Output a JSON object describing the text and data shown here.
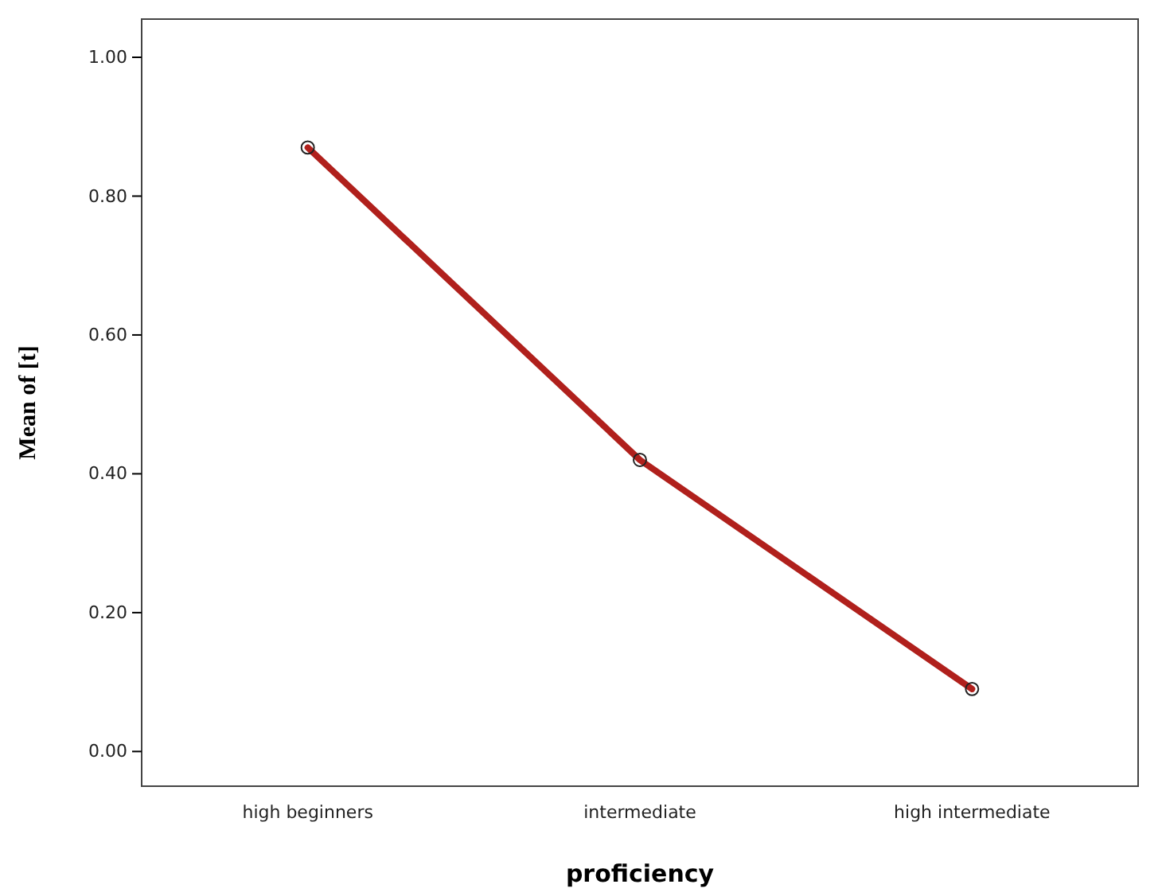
{
  "chart_data": {
    "type": "line",
    "xlabel": "proficiency",
    "ylabel": "Mean of [t]",
    "categories": [
      "high beginners",
      "intermediate",
      "high intermediate"
    ],
    "series": [
      {
        "color": "#b0201c",
        "values": [
          0.87,
          0.42,
          0.09
        ]
      }
    ],
    "ylim": [
      -0.05,
      1.055
    ],
    "yticks": [
      {
        "value": 0,
        "label": "0.00"
      },
      {
        "value": 0.2,
        "label": "0.20"
      },
      {
        "value": 0.4,
        "label": "0.40"
      },
      {
        "value": 0.6,
        "label": "0.60"
      },
      {
        "value": 0.8,
        "label": "0.80"
      },
      {
        "value": 1,
        "label": "1.00"
      }
    ],
    "marker": "circle",
    "line_style": "solid"
  }
}
